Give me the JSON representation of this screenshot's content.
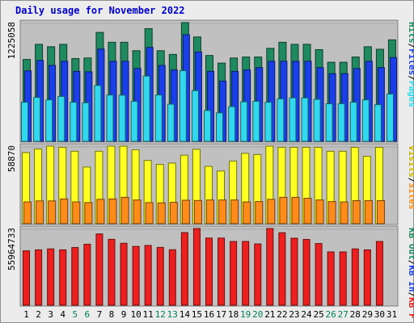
{
  "title": "Daily usage for November 2022",
  "colors": {
    "hits": "#1f8a5f",
    "files": "#1a3fe8",
    "pages": "#32d8ee",
    "visits": "#ffff22",
    "sites": "#ff8c1a",
    "kbytes": "#ee1f1f",
    "weekend": "#00805a",
    "weekday": "#000000",
    "panel": "#c0c0c0"
  },
  "right_labels": {
    "top": [
      {
        "text": "Hits",
        "color": "#1f8a5f"
      },
      {
        "text": "/",
        "color": "#000000"
      },
      {
        "text": "Files",
        "color": "#1a3fe8"
      },
      {
        "text": "/",
        "color": "#000000"
      },
      {
        "text": "Pages",
        "color": "#32d8ee"
      }
    ],
    "middle": [
      {
        "text": "Visits",
        "color": "#c8b400"
      },
      {
        "text": "/",
        "color": "#000000"
      },
      {
        "text": "Sites",
        "color": "#ff8c1a"
      }
    ],
    "bottom": [
      {
        "text": "KB Out",
        "color": "#1f8a5f"
      },
      {
        "text": "/",
        "color": "#000000"
      },
      {
        "text": "KB In",
        "color": "#1a3fe8"
      },
      {
        "text": "/",
        "color": "#000000"
      },
      {
        "text": "KB F",
        "color": "#ee1f1f"
      }
    ]
  },
  "chart_data": {
    "type": "bar",
    "title": "Daily usage for November 2022",
    "categories": [
      "1",
      "2",
      "3",
      "4",
      "5",
      "6",
      "7",
      "8",
      "9",
      "10",
      "11",
      "12",
      "13",
      "14",
      "15",
      "16",
      "17",
      "18",
      "19",
      "20",
      "21",
      "22",
      "23",
      "24",
      "25",
      "26",
      "27",
      "28",
      "29",
      "30",
      "31"
    ],
    "weekend_days": [
      "5",
      "6",
      "12",
      "13",
      "19",
      "20",
      "26",
      "27"
    ],
    "panels": [
      {
        "name": "hits-files-pages",
        "y_label": "1225058",
        "ylim": [
          0,
          1225058
        ],
        "series": [
          {
            "name": "Hits",
            "values": [
              845000,
              1001000,
              976000,
              1001000,
              854000,
              860000,
              1124000,
              1022000,
              1022000,
              935000,
              1163000,
              935000,
              897000,
              1225058,
              1077000,
              886000,
              807000,
              860000,
              870000,
              870000,
              960000,
              1022000,
              1001000,
              1001000,
              946000,
              816000,
              816000,
              870000,
              976000,
              950000,
              1047000
            ]
          },
          {
            "name": "Files",
            "values": [
              727000,
              835000,
              783000,
              826000,
              722000,
              717000,
              952000,
              826000,
              826000,
              752000,
              969000,
              783000,
              736000,
              1100000,
              922000,
              722000,
              622000,
              722000,
              737000,
              761000,
              826000,
              826000,
              826000,
              826000,
              761000,
              698000,
              698000,
              751000,
              826000,
              761000,
              864000
            ]
          },
          {
            "name": "Pages",
            "values": [
              403000,
              453000,
              428000,
              463000,
              403000,
              398000,
              576000,
              478000,
              476000,
              413000,
              673000,
              478000,
              383000,
              729000,
              523000,
              318000,
              293000,
              358000,
              408000,
              413000,
              403000,
              438000,
              448000,
              448000,
              433000,
              388000,
              388000,
              403000,
              428000,
              378000,
              488000
            ]
          }
        ]
      },
      {
        "name": "visits-sites",
        "y_label": "58870",
        "ylim": [
          0,
          58870
        ],
        "series": [
          {
            "name": "Visits",
            "values": [
              54000,
              56700,
              58870,
              58000,
              55000,
              43000,
              55000,
              58870,
              58870,
              56100,
              48000,
              45000,
              46000,
              52000,
              56500,
              43500,
              40000,
              47500,
              53400,
              52500,
              58870,
              58000,
              58000,
              58000,
              58000,
              55000,
              55000,
              58000,
              51200,
              58000,
              0
            ]
          },
          {
            "name": "Sites",
            "values": [
              16500,
              17300,
              17300,
              18800,
              16500,
              16000,
              18500,
              18800,
              20000,
              18000,
              16000,
              15800,
              16200,
              17800,
              17600,
              18000,
              18000,
              18000,
              16500,
              16800,
              18500,
              20000,
              20000,
              19300,
              18000,
              16800,
              16500,
              17500,
              17500,
              17500,
              0
            ]
          }
        ]
      },
      {
        "name": "kbytes",
        "y_label": "55964733",
        "ylim": [
          0,
          55964733
        ],
        "series": [
          {
            "name": "KB F",
            "values": [
              39700000,
              40400000,
              41100000,
              40400000,
              42100000,
              44500000,
              52000000,
              48100000,
              45200000,
              42900000,
              43600000,
              42200000,
              40500000,
              53000000,
              55964733,
              49000000,
              49000000,
              46500000,
              46500000,
              44700000,
              55964733,
              52900000,
              48900000,
              48000000,
              45000000,
              38900000,
              38900000,
              41100000,
              40400000,
              46500000,
              0
            ]
          }
        ]
      }
    ]
  }
}
